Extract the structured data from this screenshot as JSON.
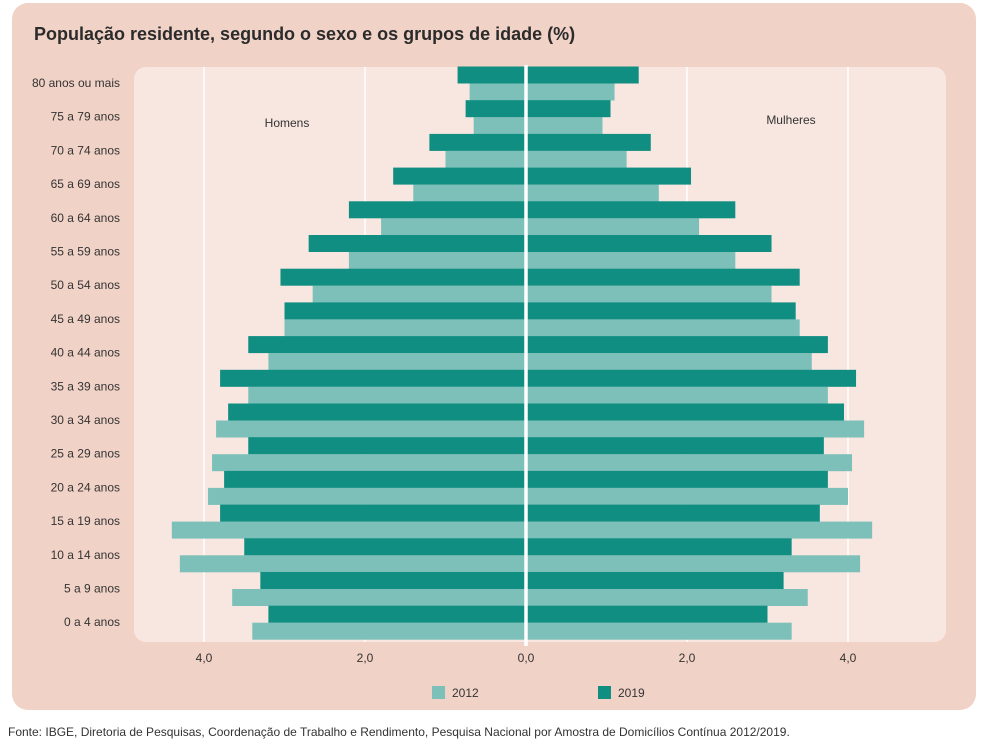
{
  "title": "População residente, segundo o sexo e os grupos de idade (%)",
  "source": "Fonte: IBGE, Diretoria de Pesquisas, Coordenação de Trabalho e Rendimento, Pesquisa Nacional por Amostra de Domicílios Contínua 2012/2019.",
  "colors": {
    "card": "#f1d2c7",
    "plot": "#f8e6e0",
    "gridline": "#ffffff",
    "series_2012": "#7cc0b9",
    "series_2019": "#0f8e81"
  },
  "chart_data": {
    "type": "bar",
    "orientation": "horizontal",
    "layout": "population-pyramid",
    "categories": [
      "80 anos ou mais",
      "75 a 79 anos",
      "70 a 74 anos",
      "65 a 69 anos",
      "60 a 64 anos",
      "55 a 59 anos",
      "50 a 54 anos",
      "45 a 49 anos",
      "40 a 44 anos",
      "35 a 39 anos",
      "30 a 34 anos",
      "25 a 29 anos",
      "20 a 24 anos",
      "15 a 19 anos",
      "10 a 14 anos",
      "5 a 9 anos",
      "0 a 4 anos"
    ],
    "sides": [
      {
        "name": "Homens",
        "direction": "left"
      },
      {
        "name": "Mulheres",
        "direction": "right"
      }
    ],
    "series": [
      {
        "name": "2012",
        "color": "#7cc0b9",
        "homens": [
          0.7,
          0.65,
          1.0,
          1.4,
          1.8,
          2.2,
          2.65,
          3.0,
          3.2,
          3.45,
          3.85,
          3.9,
          3.95,
          4.4,
          4.3,
          3.65,
          3.4
        ],
        "mulheres": [
          1.1,
          0.95,
          1.25,
          1.65,
          2.15,
          2.6,
          3.05,
          3.4,
          3.55,
          3.75,
          4.2,
          4.05,
          4.0,
          4.3,
          4.15,
          3.5,
          3.3
        ]
      },
      {
        "name": "2019",
        "color": "#0f8e81",
        "homens": [
          0.85,
          0.75,
          1.2,
          1.65,
          2.2,
          2.7,
          3.05,
          3.0,
          3.45,
          3.8,
          3.7,
          3.45,
          3.75,
          3.8,
          3.5,
          3.3,
          3.2
        ],
        "mulheres": [
          1.4,
          1.05,
          1.55,
          2.05,
          2.6,
          3.05,
          3.4,
          3.35,
          3.75,
          4.1,
          3.95,
          3.7,
          3.75,
          3.65,
          3.3,
          3.2,
          3.0
        ]
      }
    ],
    "x_ticks": [
      "4,0",
      "2,0",
      "0,0",
      "2,0",
      "4,0"
    ],
    "xlim": [
      -4.6,
      4.6
    ],
    "grid": true,
    "legend_position": "bottom"
  }
}
